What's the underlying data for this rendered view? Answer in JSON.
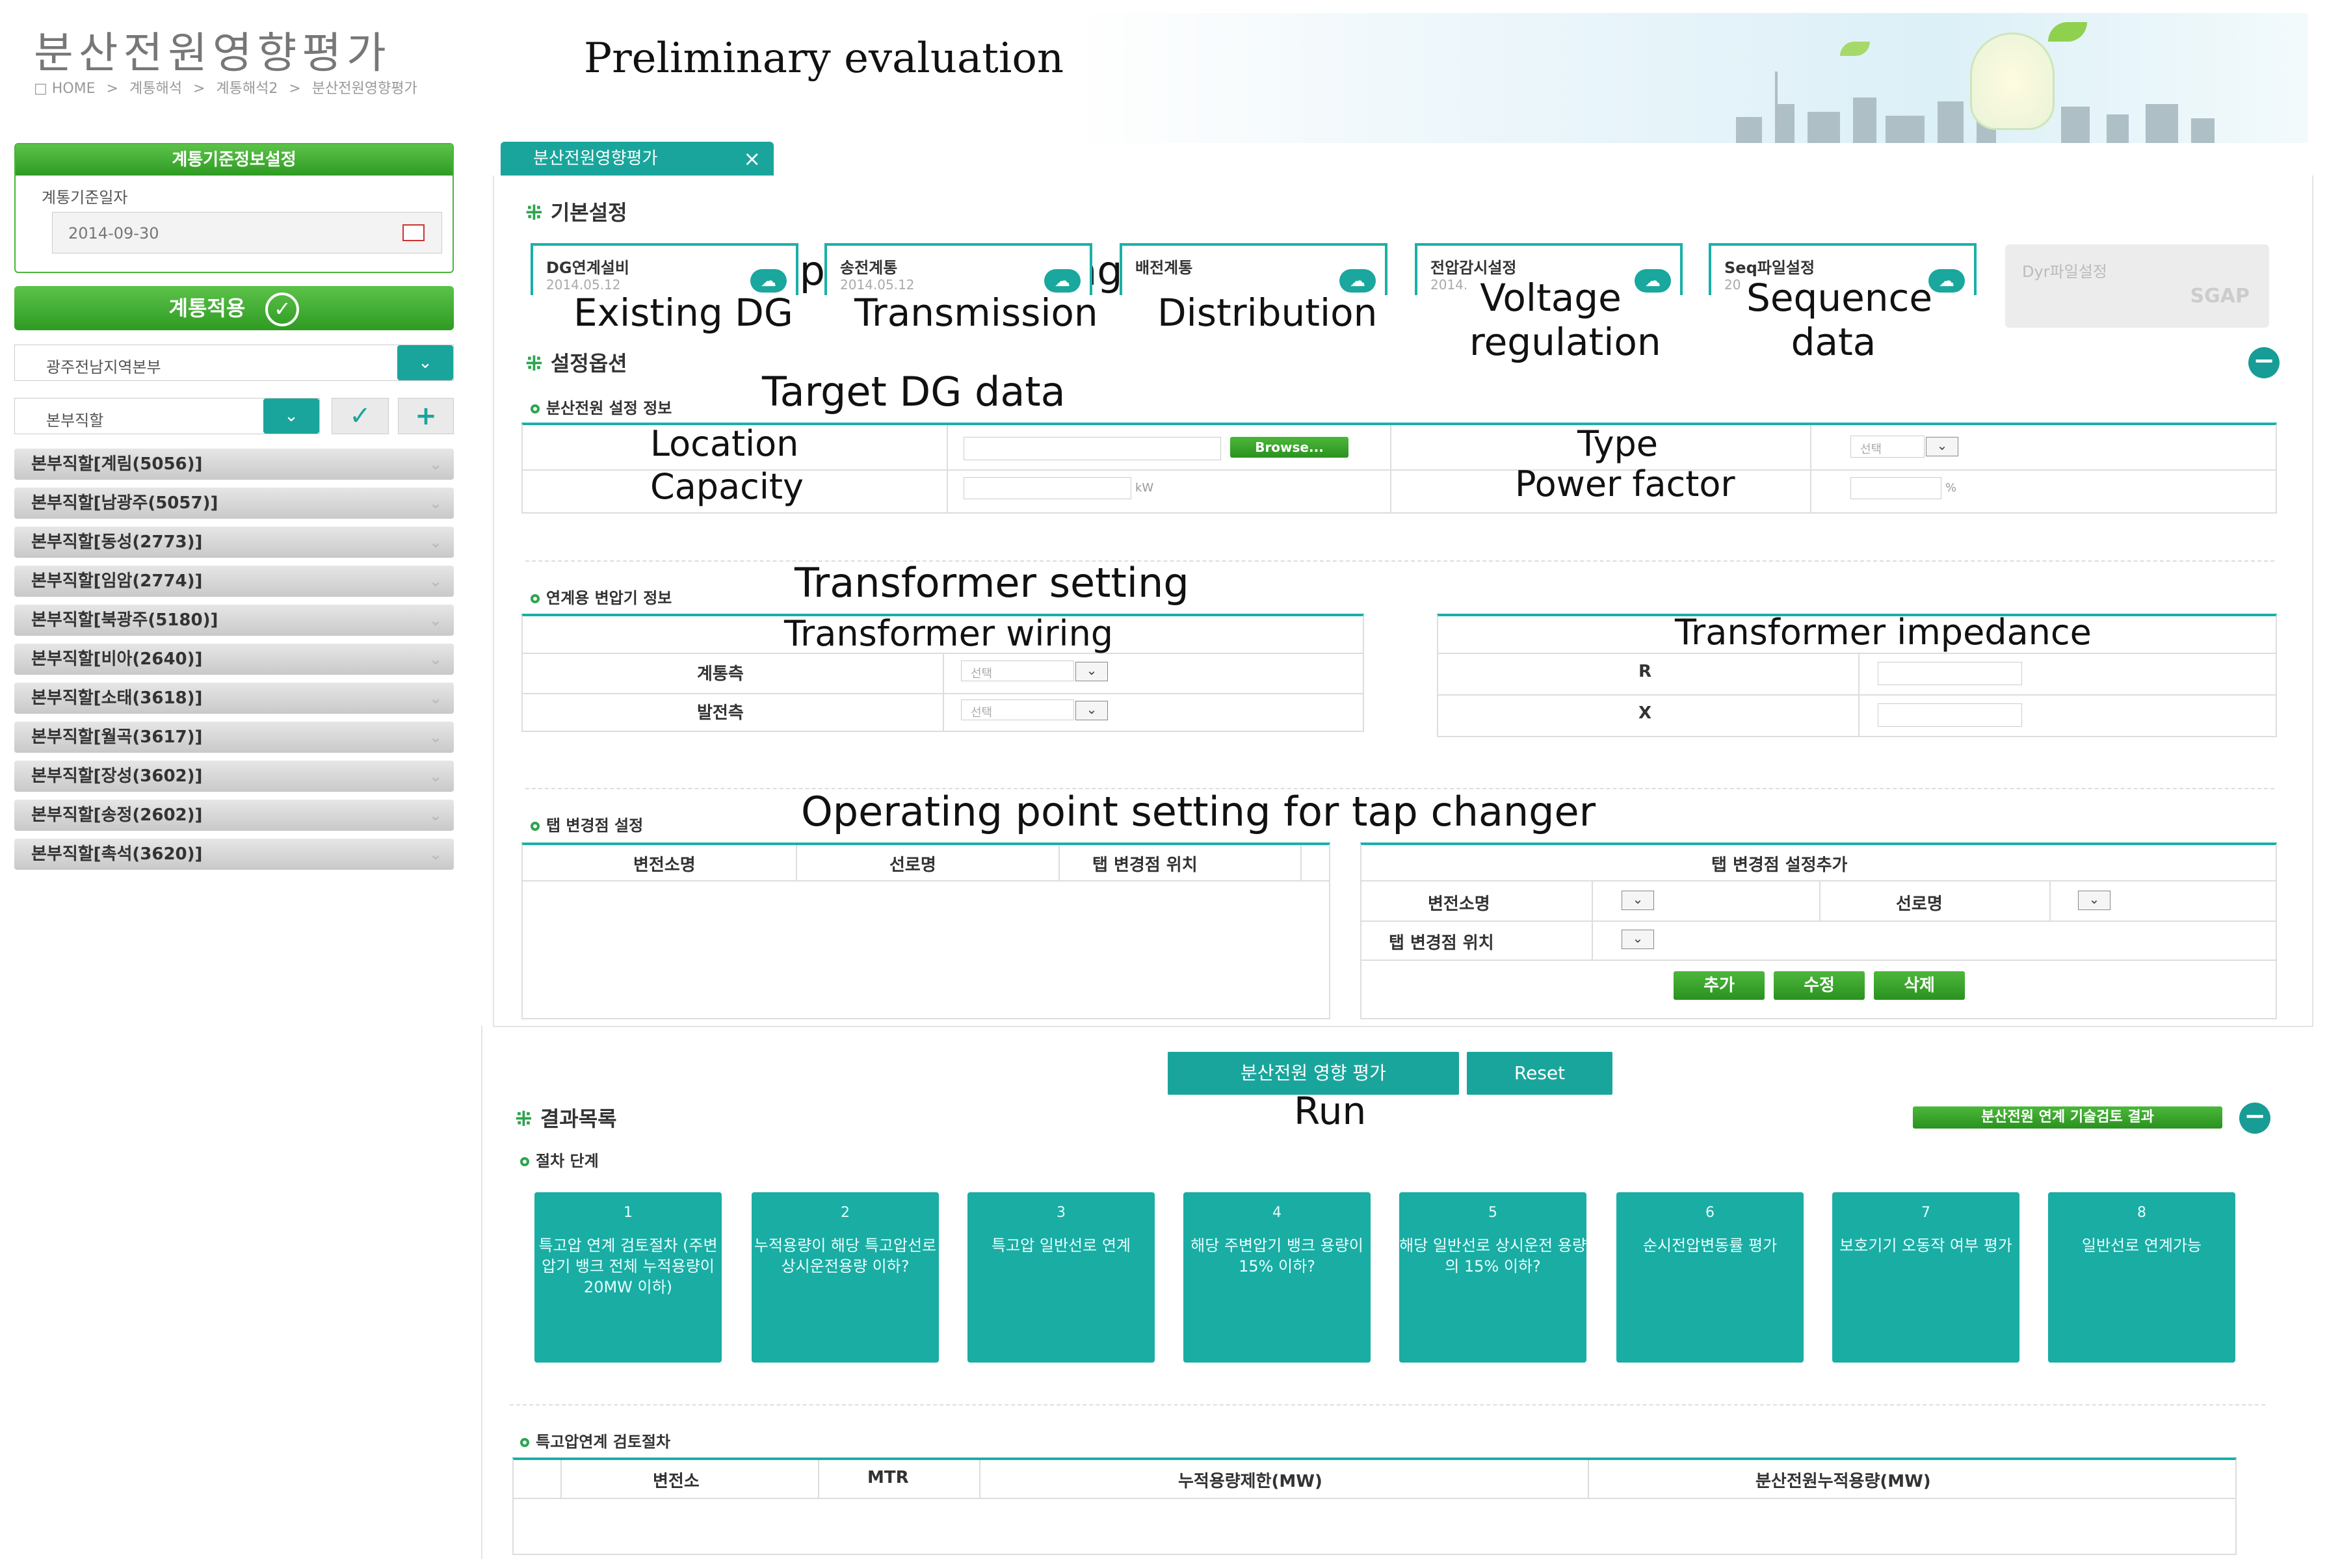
{
  "header": {
    "title": "분산전원영향평가",
    "breadcrumb": [
      "□ HOME",
      "계통해석",
      "계통해석2",
      "분산전원영향평가"
    ],
    "breadcrumb_sep": ">",
    "annotation": "Preliminary evaluation"
  },
  "sidebar": {
    "panel_title": "계통기준정보설정",
    "date_label": "계통기준일자",
    "date_value": "2014-09-30",
    "apply_button": "계통적용",
    "region_select": "광주전남지역본부",
    "office_select": "본부직할",
    "items": [
      {
        "label": "본부직할[계림(5056)]"
      },
      {
        "label": "본부직할[남광주(5057)]"
      },
      {
        "label": "본부직할[동성(2773)]"
      },
      {
        "label": "본부직할[임암(2774)]"
      },
      {
        "label": "본부직할[북광주(5180)]"
      },
      {
        "label": "본부직할[비아(2640)]"
      },
      {
        "label": "본부직할[소태(3618)]"
      },
      {
        "label": "본부직할[월곡(3617)]"
      },
      {
        "label": "본부직할[장성(3602)]"
      },
      {
        "label": "본부직할[송정(2602)]"
      },
      {
        "label": "본부직할[촉석(3620)]"
      }
    ]
  },
  "tab": {
    "label": "분산전원영향평가",
    "close": "×"
  },
  "basic": {
    "title": "기본설정",
    "annotation": "Input data setting",
    "cards": [
      {
        "label": "DG연계설비",
        "date": "2014.05.12",
        "annotation": "Existing DG"
      },
      {
        "label": "송전계통",
        "date": "2014.05.12",
        "annotation": "Transmission"
      },
      {
        "label": "배전계통",
        "date": "",
        "annotation": "Distribution"
      },
      {
        "label": "전압감시설정",
        "date": "2014.",
        "annotation": "Voltage regulation"
      },
      {
        "label": "Seq파일설정",
        "date": "20",
        "annotation": "Sequence data"
      }
    ],
    "dyr_card": {
      "label": "Dyr파일설정",
      "logo": "SGAP"
    }
  },
  "settings": {
    "title": "설정옵션",
    "dg_sub": "분산전원 설정 정보",
    "dg_annotation": "Target DG data",
    "location": "Location",
    "capacity": "Capacity",
    "type": "Type",
    "power_factor": "Power factor",
    "browse": "Browse...",
    "select_placeholder": "선택",
    "kw_unit": "kW",
    "pct_unit": "%",
    "tr_sub": "연계용 변압기 정보",
    "tr_annotation": "Transformer setting",
    "tr_wiring": "Transformer wiring",
    "tr_impedance": "Transformer impedance",
    "grid_side": "계통측",
    "gen_side": "발전측",
    "r": "R",
    "x": "X",
    "tap_sub": "탭 변경점 설정",
    "tap_annotation": "Operating point setting for tap changer",
    "tap_cols": [
      "변전소명",
      "선로명",
      "탭 변경점 위치"
    ],
    "tap_add_title": "탭 변경점 설정추가",
    "substation": "변전소명",
    "line_name": "선로명",
    "tap_pos": "탭 변경점 위치",
    "add": "추가",
    "edit": "수정",
    "delete": "삭제"
  },
  "actions": {
    "run": "분산전원 영향 평가",
    "reset": "Reset",
    "run_annotation": "Run"
  },
  "results": {
    "title": "결과목록",
    "link": "분산전원 연계 기술검토 결과",
    "steps_sub": "절차 단계",
    "steps": [
      {
        "num": "1",
        "text": "특고압 연계 검토절차 (주변압기 뱅크 전체 누적용량이 20MW 이하)"
      },
      {
        "num": "2",
        "text": "누적용량이 해당 특고압선로 상시운전용량 이하?"
      },
      {
        "num": "3",
        "text": "특고압 일반선로 연계"
      },
      {
        "num": "4",
        "text": "해당 주변압기 뱅크 용량이 15% 이하?"
      },
      {
        "num": "5",
        "text": "해당 일반선로 상시운전 용량의 15% 이하?"
      },
      {
        "num": "6",
        "text": "순시전압변동률 평가"
      },
      {
        "num": "7",
        "text": "보호기기 오동작 여부 평가"
      },
      {
        "num": "8",
        "text": "일반선로 연계가능"
      }
    ],
    "review_sub": "특고압연계 검토절차",
    "review_cols": [
      "변전소",
      "MTR",
      "누적용량제한(MW)",
      "분산전원누적용량(MW)"
    ]
  },
  "colors": {
    "teal": "#1ab0a8",
    "green": "#2e9b22",
    "gray": "#c9c9c9"
  }
}
